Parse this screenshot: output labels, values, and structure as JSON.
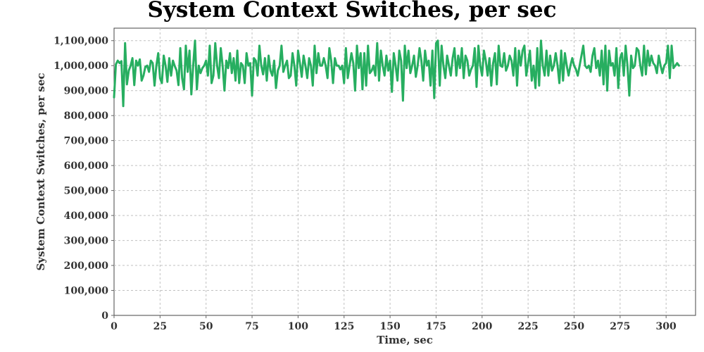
{
  "chart_data": {
    "type": "line",
    "title": "System Context Switches, per sec",
    "xlabel": "Time, sec",
    "ylabel": "System Context Switches, per sec",
    "xlim": [
      0,
      316
    ],
    "ylim": [
      0,
      1150000
    ],
    "x_ticks": [
      0,
      25,
      50,
      75,
      100,
      125,
      150,
      175,
      200,
      225,
      250,
      275,
      300
    ],
    "x_tick_labels": [
      "0",
      "25",
      "50",
      "75",
      "100",
      "125",
      "150",
      "175",
      "200",
      "225",
      "250",
      "275",
      "300"
    ],
    "y_ticks": [
      0,
      100000,
      200000,
      300000,
      400000,
      500000,
      600000,
      700000,
      800000,
      900000,
      1000000,
      1100000
    ],
    "y_tick_labels": [
      "0",
      "100,000",
      "200,000",
      "300,000",
      "400,000",
      "500,000",
      "600,000",
      "700,000",
      "800,000",
      "900,000",
      "1,000,000",
      "1,100,000"
    ],
    "grid": true,
    "legend": "none",
    "series": [
      {
        "color": "#27ae60",
        "x_start": 0,
        "x_step": 1,
        "values": [
          873000,
          1005000,
          1020000,
          1010000,
          1018000,
          838000,
          1090000,
          925000,
          980000,
          1000000,
          1030000,
          922000,
          1020000,
          1000000,
          1025000,
          940000,
          960000,
          995000,
          1000000,
          975000,
          1020000,
          1010000,
          920000,
          1000000,
          1050000,
          950000,
          930000,
          1040000,
          1000000,
          935000,
          1030000,
          960000,
          1020000,
          998000,
          980000,
          922000,
          1070000,
          950000,
          905000,
          1080000,
          975000,
          1060000,
          885000,
          1000000,
          1100000,
          905000,
          1000000,
          970000,
          990000,
          1000000,
          1020000,
          960000,
          1080000,
          930000,
          960000,
          1090000,
          1000000,
          950000,
          1070000,
          1000000,
          900000,
          1020000,
          990000,
          1050000,
          970000,
          1030000,
          940000,
          1060000,
          930000,
          1010000,
          1000000,
          930000,
          1050000,
          1000000,
          1010000,
          880000,
          1030000,
          1020000,
          960000,
          1080000,
          1000000,
          965000,
          1030000,
          940000,
          1040000,
          980000,
          960000,
          1020000,
          910000,
          980000,
          1000000,
          1080000,
          975000,
          1000000,
          1020000,
          950000,
          960000,
          1050000,
          1000000,
          920000,
          1060000,
          1010000,
          955000,
          1040000,
          1000000,
          950000,
          1030000,
          1000000,
          920000,
          1080000,
          970000,
          1050000,
          1000000,
          1000000,
          1030000,
          1000000,
          950000,
          1070000,
          1020000,
          930000,
          1030000,
          1000000,
          1000000,
          985000,
          1000000,
          930000,
          1070000,
          950000,
          1000000,
          1050000,
          1010000,
          900000,
          1080000,
          990000,
          1050000,
          905000,
          1050000,
          920000,
          1080000,
          970000,
          980000,
          1000000,
          960000,
          1090000,
          940000,
          1060000,
          1000000,
          960000,
          1040000,
          980000,
          1020000,
          895000,
          1050000,
          1000000,
          940000,
          1060000,
          1020000,
          860000,
          1080000,
          990000,
          1060000,
          970000,
          1000000,
          1040000,
          955000,
          1000000,
          1070000,
          1020000,
          940000,
          1060000,
          1000000,
          1020000,
          920000,
          1060000,
          870000,
          1090000,
          1100000,
          920000,
          1080000,
          1000000,
          950000,
          1040000,
          1000000,
          960000,
          1030000,
          1070000,
          960000,
          1040000,
          990000,
          1070000,
          950000,
          1040000,
          1020000,
          960000,
          985000,
          1000000,
          1070000,
          915000,
          1080000,
          1000000,
          960000,
          1060000,
          1020000,
          960000,
          1030000,
          920000,
          1010000,
          1050000,
          925000,
          1080000,
          1000000,
          995000,
          1050000,
          980000,
          1000000,
          1040000,
          1020000,
          960000,
          1070000,
          920000,
          1060000,
          1000000,
          1060000,
          1080000,
          960000,
          1010000,
          1060000,
          940000,
          1000000,
          910000,
          1070000,
          920000,
          1100000,
          1000000,
          960000,
          1060000,
          960000,
          1040000,
          980000,
          1000000,
          1050000,
          1000000,
          930000,
          1060000,
          940000,
          1050000,
          1000000,
          960000,
          1000000,
          1030000,
          1000000,
          985000,
          960000,
          1000000,
          1040000,
          1080000,
          1000000,
          990000,
          1000000,
          975000,
          1040000,
          1070000,
          990000,
          1020000,
          960000,
          1060000,
          925000,
          1080000,
          900000,
          1060000,
          1000000,
          1010000,
          960000,
          1070000,
          910000,
          1030000,
          1050000,
          960000,
          1080000,
          1000000,
          880000,
          1040000,
          990000,
          1000000,
          1070000,
          1060000,
          1000000,
          960000,
          1080000,
          965000,
          1060000,
          1000000,
          1040000,
          1010000,
          1000000,
          970000,
          1040000,
          1000000,
          970000,
          1000000,
          1010000,
          1080000,
          950000,
          1080000,
          990000,
          1000000,
          1010000,
          1000000
        ]
      }
    ]
  }
}
